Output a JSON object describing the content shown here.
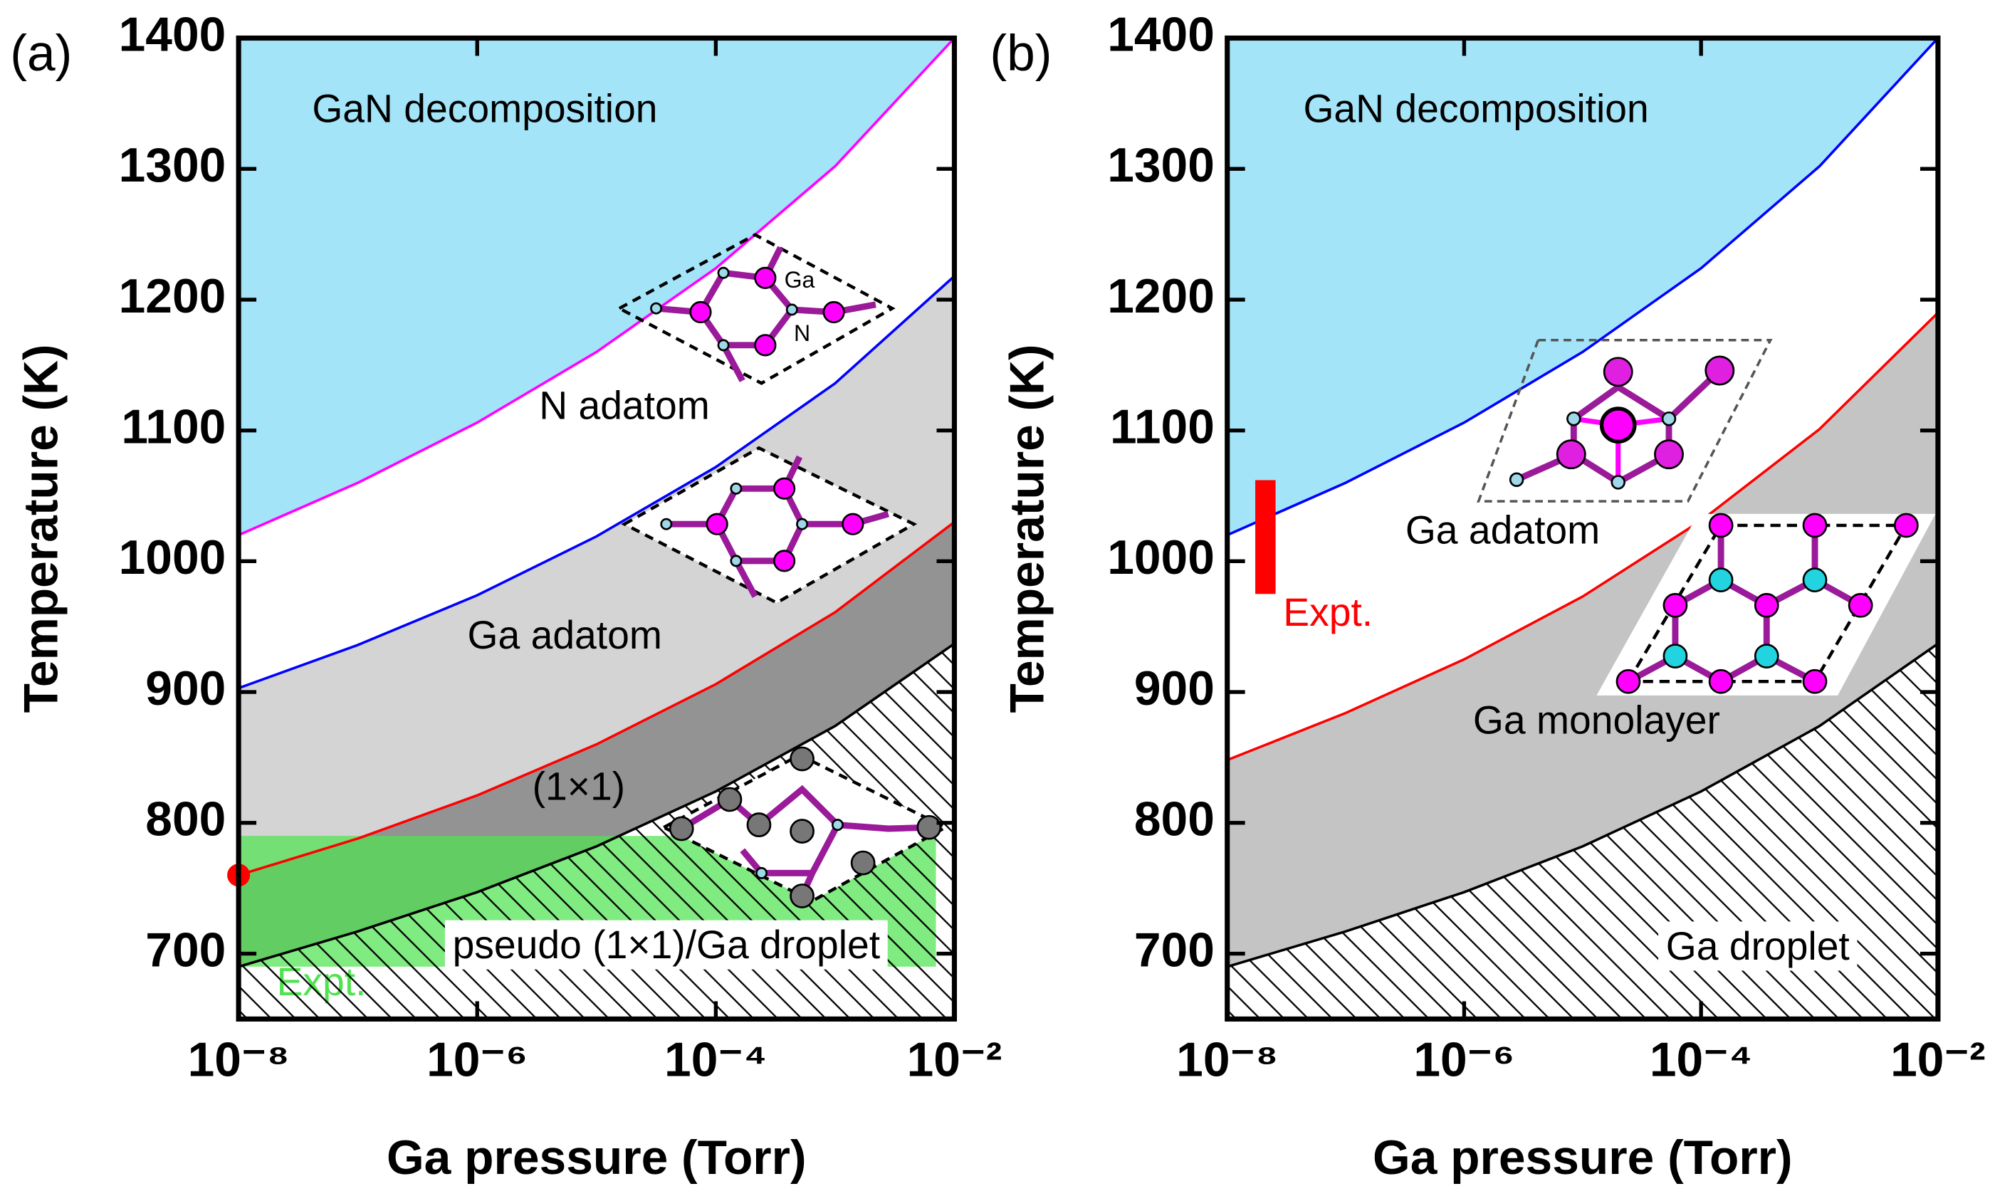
{
  "chart_data": [
    {
      "type": "line",
      "panel": "(a)",
      "xlabel": "Ga pressure (Torr)",
      "ylabel": "Temperature (K)",
      "xlog": true,
      "xlim": [
        1e-08,
        0.01
      ],
      "ylim": [
        650,
        1400
      ],
      "xticks": [
        {
          "value": 1e-08,
          "label": "10⁻⁸"
        },
        {
          "value": 1e-06,
          "label": "10⁻⁶"
        },
        {
          "value": 0.0001,
          "label": "10⁻⁴"
        },
        {
          "value": 0.01,
          "label": "10⁻²"
        }
      ],
      "yticks": [
        700,
        800,
        900,
        1000,
        1100,
        1200,
        1300,
        1400
      ],
      "x": [
        1e-08,
        1e-07,
        1e-06,
        1e-05,
        0.0001,
        0.001,
        0.01
      ],
      "series": [
        {
          "color": "#ff00ff",
          "values": [
            1020,
            1060,
            1106,
            1160,
            1224,
            1302,
            1400
          ]
        },
        {
          "color": "#0000ff",
          "values": [
            903,
            936,
            974,
            1019,
            1072,
            1136,
            1218
          ]
        },
        {
          "color": "#ff0000",
          "values": [
            760,
            788,
            821,
            860,
            906,
            961,
            1030
          ]
        },
        {
          "color": "#000000",
          "values": [
            690,
            717,
            747,
            782,
            824,
            874,
            937
          ]
        }
      ],
      "regions": [
        {
          "label": "GaN decomposition",
          "color": "#a3e4f9"
        },
        {
          "label": "N adatom",
          "color": "#ffffff"
        },
        {
          "label": "Ga adatom",
          "color": "#d4d4d4"
        },
        {
          "label": "(1×1)",
          "color": "#939393"
        },
        {
          "label": "pseudo (1×1)/Ga droplet",
          "color": "#ffffff",
          "hatch": true
        }
      ],
      "band": {
        "x": [
          1e-08,
          0.007
        ],
        "y": [
          690,
          790
        ],
        "color": "#4fe34f",
        "label": "Expt."
      },
      "point": {
        "x": 1e-08,
        "y": 760,
        "color": "#ff0000"
      },
      "inset_labels": [
        "Ga",
        "N"
      ]
    },
    {
      "type": "line",
      "panel": "(b)",
      "xlabel": "Ga pressure (Torr)",
      "ylabel": "Temperature (K)",
      "xlog": true,
      "xlim": [
        1e-08,
        0.01
      ],
      "ylim": [
        650,
        1400
      ],
      "xticks": [
        {
          "value": 1e-08,
          "label": "10⁻⁸"
        },
        {
          "value": 1e-06,
          "label": "10⁻⁶"
        },
        {
          "value": 0.0001,
          "label": "10⁻⁴"
        },
        {
          "value": 0.01,
          "label": "10⁻²"
        }
      ],
      "yticks": [
        700,
        800,
        900,
        1000,
        1100,
        1200,
        1300,
        1400
      ],
      "x": [
        1e-08,
        1e-07,
        1e-06,
        1e-05,
        0.0001,
        0.001,
        0.01
      ],
      "series": [
        {
          "color": "#0000ff",
          "values": [
            1020,
            1060,
            1106,
            1160,
            1224,
            1302,
            1400
          ]
        },
        {
          "color": "#ff0000",
          "values": [
            848,
            884,
            925,
            973,
            1031,
            1101,
            1190
          ]
        },
        {
          "color": "#000000",
          "values": [
            690,
            717,
            747,
            782,
            824,
            874,
            937
          ]
        }
      ],
      "regions": [
        {
          "label": "GaN decomposition",
          "color": "#a3e4f9"
        },
        {
          "label": "Ga adatom",
          "color": "#ffffff"
        },
        {
          "label": "Ga monolayer",
          "color": "#c4c4c4"
        },
        {
          "label": "Ga droplet",
          "color": "#ffffff",
          "hatch": true
        }
      ],
      "bar": {
        "x": 2.1e-08,
        "y": [
          975,
          1062
        ],
        "color": "#ff0000",
        "label": "Expt."
      }
    }
  ]
}
